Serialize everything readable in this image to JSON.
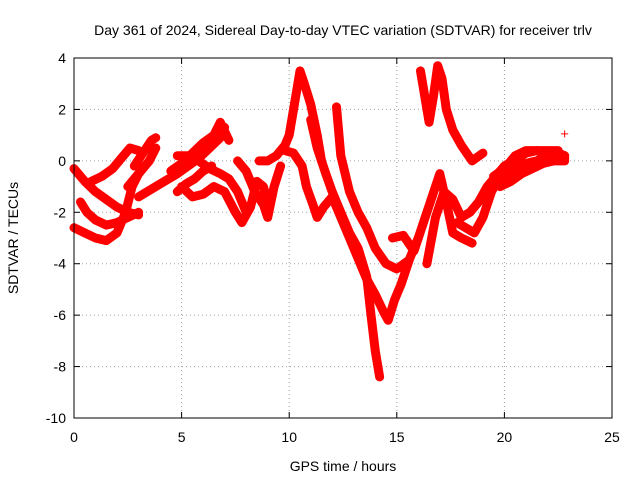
{
  "chart_data": {
    "type": "scatter",
    "title": "Day 361 of 2024, Sidereal Day-to-day VTEC variation (SDTVAR) for receiver trlv",
    "xlabel": "GPS time / hours",
    "ylabel": "SDTVAR / TECUs",
    "xlim": [
      0,
      25
    ],
    "ylim": [
      -10,
      4
    ],
    "xticks": [
      0,
      5,
      10,
      15,
      20,
      25
    ],
    "yticks": [
      -10,
      -8,
      -6,
      -4,
      -2,
      0,
      2,
      4
    ],
    "grid": true,
    "marker": "+",
    "color": "#ff0000",
    "tracks": [
      [
        [
          0.0,
          -0.3
        ],
        [
          0.5,
          -0.8
        ],
        [
          1.0,
          -1.2
        ],
        [
          1.5,
          -1.5
        ],
        [
          2.0,
          -1.8
        ],
        [
          2.5,
          -2.0
        ],
        [
          3.0,
          -2.1
        ]
      ],
      [
        [
          0.3,
          -1.6
        ],
        [
          0.6,
          -2.0
        ],
        [
          1.0,
          -2.3
        ],
        [
          1.5,
          -2.5
        ],
        [
          2.0,
          -2.4
        ],
        [
          2.5,
          -2.2
        ],
        [
          3.0,
          -2.0
        ]
      ],
      [
        [
          0.0,
          -2.6
        ],
        [
          0.5,
          -2.8
        ],
        [
          1.0,
          -3.0
        ],
        [
          1.5,
          -3.1
        ],
        [
          2.0,
          -2.8
        ],
        [
          2.4,
          -2.0
        ],
        [
          2.7,
          -1.0
        ],
        [
          3.0,
          -0.5
        ]
      ],
      [
        [
          0.8,
          -0.8
        ],
        [
          1.3,
          -0.6
        ],
        [
          1.8,
          -0.3
        ],
        [
          2.2,
          0.1
        ],
        [
          2.6,
          0.5
        ],
        [
          3.0,
          0.4
        ]
      ],
      [
        [
          2.8,
          -0.2
        ],
        [
          3.2,
          0.3
        ],
        [
          3.6,
          0.8
        ],
        [
          3.8,
          0.9
        ]
      ],
      [
        [
          2.5,
          -1.0
        ],
        [
          3.0,
          -0.5
        ],
        [
          3.5,
          0.0
        ],
        [
          3.8,
          0.5
        ]
      ],
      [
        [
          3.0,
          -1.4
        ],
        [
          3.6,
          -1.1
        ],
        [
          4.2,
          -0.8
        ],
        [
          4.8,
          -0.5
        ],
        [
          5.3,
          -0.2
        ],
        [
          5.8,
          0.1
        ],
        [
          6.3,
          0.5
        ],
        [
          6.8,
          0.9
        ],
        [
          7.0,
          1.3
        ]
      ],
      [
        [
          4.5,
          -0.4
        ],
        [
          5.0,
          -0.1
        ],
        [
          5.5,
          0.3
        ],
        [
          6.0,
          0.7
        ],
        [
          6.5,
          1.0
        ],
        [
          6.8,
          1.5
        ],
        [
          7.2,
          0.8
        ]
      ],
      [
        [
          4.8,
          -1.2
        ],
        [
          5.2,
          -0.9
        ],
        [
          5.6,
          -0.7
        ],
        [
          6.0,
          -0.4
        ],
        [
          6.4,
          -0.2
        ]
      ],
      [
        [
          5.0,
          -1.0
        ],
        [
          5.5,
          -1.4
        ],
        [
          6.0,
          -1.3
        ],
        [
          6.5,
          -1.0
        ],
        [
          7.0,
          -1.2
        ],
        [
          7.5,
          -2.0
        ],
        [
          7.8,
          -2.4
        ],
        [
          8.2,
          -1.8
        ],
        [
          8.5,
          -0.8
        ],
        [
          8.8,
          -1.0
        ],
        [
          9.0,
          -1.6
        ]
      ],
      [
        [
          4.8,
          0.2
        ],
        [
          5.3,
          0.2
        ],
        [
          5.8,
          0.0
        ],
        [
          6.3,
          -0.3
        ],
        [
          6.8,
          -0.5
        ],
        [
          7.2,
          -0.7
        ],
        [
          7.6,
          -1.2
        ],
        [
          8.0,
          -2.0
        ]
      ],
      [
        [
          7.6,
          0.0
        ],
        [
          8.0,
          -0.4
        ],
        [
          8.4,
          -1.2
        ],
        [
          8.8,
          -1.7
        ],
        [
          9.0,
          -2.2
        ],
        [
          9.3,
          -1.0
        ],
        [
          9.6,
          -0.2
        ]
      ],
      [
        [
          8.6,
          0.0
        ],
        [
          9.0,
          0.0
        ],
        [
          9.4,
          0.2
        ],
        [
          9.8,
          0.6
        ],
        [
          10.0,
          1.0
        ],
        [
          10.3,
          2.5
        ],
        [
          10.5,
          3.5
        ],
        [
          10.7,
          3.0
        ],
        [
          11.0,
          2.2
        ],
        [
          11.3,
          1.0
        ],
        [
          11.5,
          0.0
        ]
      ],
      [
        [
          9.8,
          0.4
        ],
        [
          10.2,
          0.3
        ],
        [
          10.6,
          -0.2
        ],
        [
          10.8,
          -1.0
        ],
        [
          11.1,
          -1.7
        ],
        [
          11.3,
          -2.2
        ],
        [
          11.6,
          -1.8
        ],
        [
          12.0,
          -1.4
        ]
      ],
      [
        [
          11.0,
          1.6
        ],
        [
          11.3,
          0.5
        ],
        [
          11.7,
          -0.5
        ],
        [
          12.0,
          -1.2
        ],
        [
          12.4,
          -2.0
        ],
        [
          12.8,
          -2.8
        ],
        [
          13.2,
          -3.4
        ],
        [
          13.6,
          -4.5
        ],
        [
          13.8,
          -6.0
        ],
        [
          14.0,
          -7.4
        ],
        [
          14.2,
          -8.4
        ]
      ],
      [
        [
          12.0,
          -1.4
        ],
        [
          12.4,
          -2.2
        ],
        [
          12.8,
          -3.0
        ],
        [
          13.2,
          -3.8
        ],
        [
          13.6,
          -4.6
        ],
        [
          14.0,
          -5.2
        ],
        [
          14.4,
          -5.9
        ],
        [
          14.6,
          -6.2
        ],
        [
          14.9,
          -5.4
        ],
        [
          15.2,
          -4.8
        ],
        [
          15.6,
          -3.8
        ],
        [
          16.0,
          -3.0
        ]
      ],
      [
        [
          12.2,
          2.1
        ],
        [
          12.4,
          0.2
        ],
        [
          12.8,
          -1.2
        ],
        [
          13.2,
          -2.0
        ],
        [
          13.6,
          -2.6
        ],
        [
          14.0,
          -3.4
        ],
        [
          14.5,
          -4.0
        ],
        [
          15.0,
          -4.2
        ],
        [
          15.5,
          -3.9
        ]
      ],
      [
        [
          14.8,
          -3.0
        ],
        [
          15.3,
          -2.9
        ],
        [
          15.8,
          -3.5
        ],
        [
          16.2,
          -2.5
        ],
        [
          16.6,
          -1.5
        ],
        [
          17.0,
          -0.5
        ],
        [
          17.3,
          -1.6
        ],
        [
          17.6,
          -2.8
        ],
        [
          18.0,
          -3.0
        ],
        [
          18.5,
          -3.2
        ]
      ],
      [
        [
          16.1,
          3.5
        ],
        [
          16.3,
          2.5
        ],
        [
          16.5,
          1.5
        ],
        [
          16.7,
          2.5
        ],
        [
          16.9,
          3.7
        ],
        [
          17.1,
          3.2
        ],
        [
          17.3,
          2.0
        ],
        [
          17.6,
          1.2
        ],
        [
          18.0,
          0.6
        ],
        [
          18.5,
          0.0
        ],
        [
          19.0,
          0.3
        ]
      ],
      [
        [
          16.4,
          -4.0
        ],
        [
          16.8,
          -2.2
        ],
        [
          17.2,
          -1.2
        ],
        [
          17.6,
          -1.5
        ],
        [
          18.0,
          -2.2
        ],
        [
          18.4,
          -2.0
        ],
        [
          18.8,
          -1.6
        ],
        [
          19.2,
          -1.0
        ],
        [
          19.6,
          -0.6
        ],
        [
          20.0,
          -0.2
        ],
        [
          20.4,
          0.0
        ]
      ],
      [
        [
          17.8,
          -2.4
        ],
        [
          18.2,
          -2.6
        ],
        [
          18.6,
          -2.8
        ],
        [
          19.0,
          -2.2
        ],
        [
          19.4,
          -1.2
        ],
        [
          19.8,
          -0.6
        ],
        [
          20.2,
          -0.2
        ],
        [
          20.6,
          0.1
        ],
        [
          21.0,
          0.3
        ],
        [
          21.5,
          0.4
        ],
        [
          22.0,
          0.3
        ],
        [
          22.5,
          0.2
        ],
        [
          22.8,
          0.1
        ]
      ],
      [
        [
          19.0,
          -1.4
        ],
        [
          19.5,
          -1.0
        ],
        [
          20.0,
          -0.6
        ],
        [
          20.5,
          -0.3
        ],
        [
          21.0,
          -0.1
        ],
        [
          21.5,
          0.0
        ],
        [
          22.0,
          0.2
        ],
        [
          22.5,
          0.3
        ],
        [
          22.8,
          0.2
        ]
      ],
      [
        [
          19.5,
          -0.6
        ],
        [
          20.0,
          -0.3
        ],
        [
          20.5,
          0.2
        ],
        [
          21.0,
          0.4
        ],
        [
          21.5,
          0.4
        ],
        [
          22.0,
          0.4
        ],
        [
          22.5,
          0.4
        ]
      ],
      [
        [
          19.8,
          -1.0
        ],
        [
          20.3,
          -0.8
        ],
        [
          20.8,
          -0.5
        ],
        [
          21.3,
          -0.3
        ],
        [
          21.8,
          -0.1
        ],
        [
          22.3,
          0.0
        ],
        [
          22.8,
          0.0
        ]
      ]
    ],
    "outliers": [
      [
        22.8,
        1.05
      ]
    ]
  }
}
